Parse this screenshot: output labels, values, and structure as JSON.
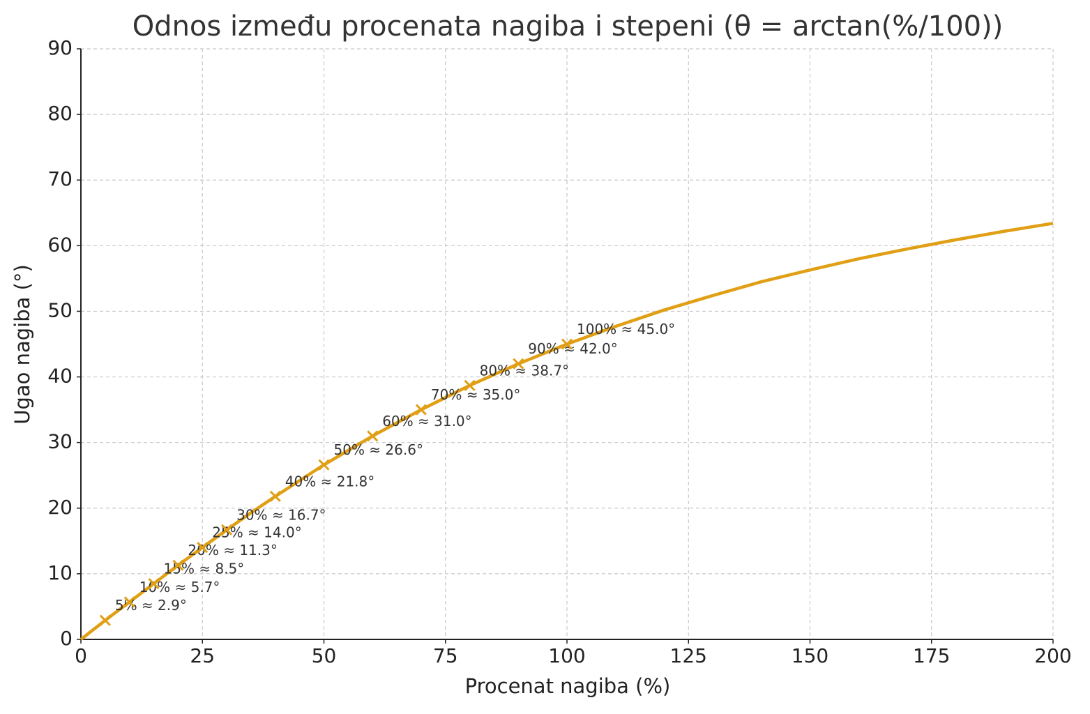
{
  "chart_data": {
    "type": "line",
    "title": "Odnos između procenata nagiba i stepeni (θ = arctan(%/100))",
    "xlabel": "Procenat nagiba (%)",
    "ylabel": "Ugao nagiba (°)",
    "xlim": [
      0,
      200
    ],
    "ylim": [
      0,
      90
    ],
    "xticks": [
      0,
      25,
      50,
      75,
      100,
      125,
      150,
      175,
      200
    ],
    "yticks": [
      0,
      10,
      20,
      30,
      40,
      50,
      60,
      70,
      80,
      90
    ],
    "grid": true,
    "series": [
      {
        "color": "#e09f14",
        "marker": "none",
        "x": [
          0,
          5,
          10,
          15,
          20,
          25,
          30,
          35,
          40,
          45,
          50,
          60,
          70,
          80,
          90,
          100,
          110,
          120,
          130,
          140,
          150,
          160,
          170,
          180,
          190,
          200
        ],
        "values": [
          0,
          2.9,
          5.7,
          8.5,
          11.3,
          14.0,
          16.7,
          19.3,
          21.8,
          24.2,
          26.6,
          31.0,
          35.0,
          38.7,
          42.0,
          45.0,
          47.7,
          50.2,
          52.4,
          54.5,
          56.3,
          58.0,
          59.5,
          60.9,
          62.2,
          63.4
        ]
      },
      {
        "color": "#e09f14",
        "marker": "x",
        "x": [
          5,
          10,
          15,
          20,
          25,
          30,
          40,
          50,
          60,
          70,
          80,
          90,
          100
        ],
        "values": [
          2.9,
          5.7,
          8.5,
          11.3,
          14.0,
          16.7,
          21.8,
          26.6,
          31.0,
          35.0,
          38.7,
          42.0,
          45.0
        ],
        "annotations": [
          "5% ≈ 2.9°",
          "10% ≈ 5.7°",
          "15% ≈ 8.5°",
          "20% ≈ 11.3°",
          "25% ≈ 14.0°",
          "30% ≈ 16.7°",
          "40% ≈ 21.8°",
          "50% ≈ 26.6°",
          "60% ≈ 31.0°",
          "70% ≈ 35.0°",
          "80% ≈ 38.7°",
          "90% ≈ 42.0°",
          "100% ≈ 45.0°"
        ]
      }
    ]
  }
}
